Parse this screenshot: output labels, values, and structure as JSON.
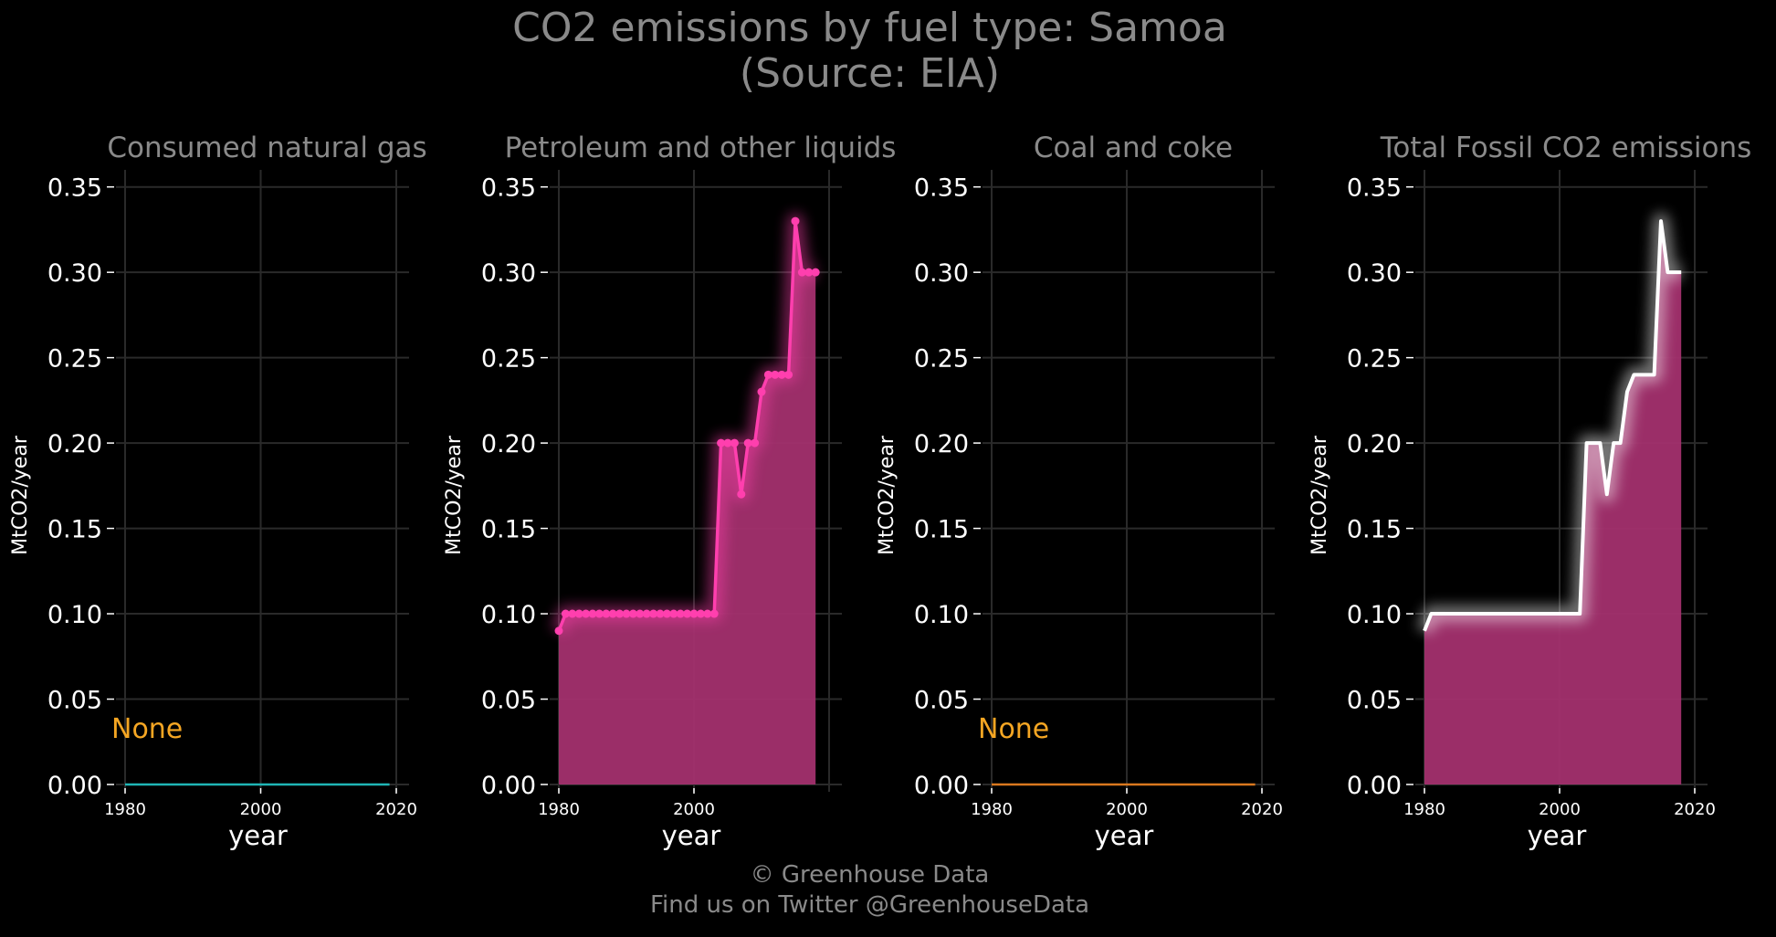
{
  "title": {
    "line1": "CO2 emissions by fuel type: Samoa",
    "line2": "(Source: EIA)"
  },
  "credits": {
    "line1": "© Greenhouse Data",
    "line2": "Find us on Twitter @GreenhouseData"
  },
  "colors": {
    "background": "#000000",
    "grid": "#2a2a2a",
    "title_text": "#8a8a8a",
    "tick_text": "#ffffff",
    "none_label": "#f5a623",
    "fill": "#a3306e",
    "petroleum_line": "#ff3fae",
    "total_line": "#ffffff",
    "natural_gas_line": "#1fb5b5",
    "coal_line": "#d9781e"
  },
  "chart_data": [
    {
      "type": "area",
      "title": "Consumed natural gas",
      "xlabel": "year",
      "ylabel": "MtCO2/year",
      "xlim": [
        1980,
        2020
      ],
      "ylim": [
        0,
        0.36
      ],
      "xticks": [
        "1980",
        "2000",
        "2020"
      ],
      "yticks": [
        "0.00",
        "0.05",
        "0.10",
        "0.15",
        "0.20",
        "0.25",
        "0.30",
        "0.35"
      ],
      "grid": true,
      "annotation": "None",
      "series": [
        {
          "x": [
            1980,
            2019
          ],
          "values": [
            0,
            0
          ]
        }
      ]
    },
    {
      "type": "area",
      "title": "Petroleum and other liquids",
      "xlabel": "year",
      "ylabel": "MtCO2/year",
      "xlim": [
        1980,
        2020
      ],
      "ylim": [
        0,
        0.36
      ],
      "xticks": [
        "1980",
        "2000"
      ],
      "yticks": [
        "0.00",
        "0.05",
        "0.10",
        "0.15",
        "0.20",
        "0.25",
        "0.30",
        "0.35"
      ],
      "grid": true,
      "series": [
        {
          "x": [
            1980,
            1981,
            1982,
            1983,
            1984,
            1985,
            1986,
            1987,
            1988,
            1989,
            1990,
            1991,
            1992,
            1993,
            1994,
            1995,
            1996,
            1997,
            1998,
            1999,
            2000,
            2001,
            2002,
            2003,
            2004,
            2005,
            2006,
            2007,
            2008,
            2009,
            2010,
            2011,
            2012,
            2013,
            2014,
            2015,
            2016,
            2017,
            2018
          ],
          "values": [
            0.09,
            0.1,
            0.1,
            0.1,
            0.1,
            0.1,
            0.1,
            0.1,
            0.1,
            0.1,
            0.1,
            0.1,
            0.1,
            0.1,
            0.1,
            0.1,
            0.1,
            0.1,
            0.1,
            0.1,
            0.1,
            0.1,
            0.1,
            0.1,
            0.2,
            0.2,
            0.2,
            0.17,
            0.2,
            0.2,
            0.23,
            0.24,
            0.24,
            0.24,
            0.24,
            0.33,
            0.3,
            0.3,
            0.3
          ]
        }
      ]
    },
    {
      "type": "area",
      "title": "Coal and coke",
      "xlabel": "year",
      "ylabel": "MtCO2/year",
      "xlim": [
        1980,
        2020
      ],
      "ylim": [
        0,
        0.36
      ],
      "xticks": [
        "1980",
        "2000",
        "2020"
      ],
      "yticks": [
        "0.00",
        "0.05",
        "0.10",
        "0.15",
        "0.20",
        "0.25",
        "0.30",
        "0.35"
      ],
      "grid": true,
      "annotation": "None",
      "series": [
        {
          "x": [
            1980,
            2019
          ],
          "values": [
            0,
            0
          ]
        }
      ]
    },
    {
      "type": "area",
      "title": "Total Fossil CO2 emissions",
      "xlabel": "year",
      "ylabel": "MtCO2/year",
      "xlim": [
        1980,
        2020
      ],
      "ylim": [
        0,
        0.36
      ],
      "xticks": [
        "1980",
        "2000",
        "2020"
      ],
      "yticks": [
        "0.00",
        "0.05",
        "0.10",
        "0.15",
        "0.20",
        "0.25",
        "0.30",
        "0.35"
      ],
      "grid": true,
      "series": [
        {
          "x": [
            1980,
            1981,
            1982,
            1983,
            1984,
            1985,
            1986,
            1987,
            1988,
            1989,
            1990,
            1991,
            1992,
            1993,
            1994,
            1995,
            1996,
            1997,
            1998,
            1999,
            2000,
            2001,
            2002,
            2003,
            2004,
            2005,
            2006,
            2007,
            2008,
            2009,
            2010,
            2011,
            2012,
            2013,
            2014,
            2015,
            2016,
            2017,
            2018
          ],
          "values": [
            0.09,
            0.1,
            0.1,
            0.1,
            0.1,
            0.1,
            0.1,
            0.1,
            0.1,
            0.1,
            0.1,
            0.1,
            0.1,
            0.1,
            0.1,
            0.1,
            0.1,
            0.1,
            0.1,
            0.1,
            0.1,
            0.1,
            0.1,
            0.1,
            0.2,
            0.2,
            0.2,
            0.17,
            0.2,
            0.2,
            0.23,
            0.24,
            0.24,
            0.24,
            0.24,
            0.33,
            0.3,
            0.3,
            0.3
          ]
        }
      ]
    }
  ]
}
